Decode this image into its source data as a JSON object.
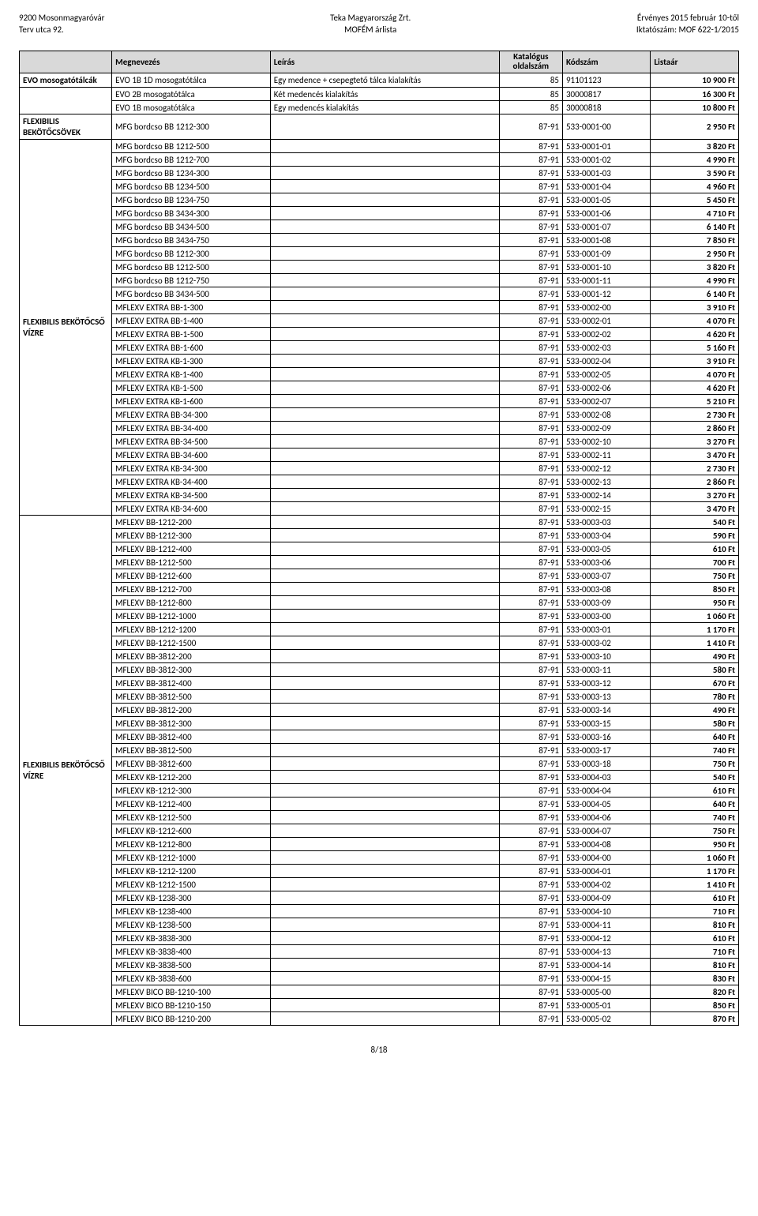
{
  "header": {
    "left1": "9200 Mosonmagyaróvár",
    "left2": "Terv utca 92.",
    "center1": "Teka Magyarország Zrt.",
    "center2": "MOFÉM árlista",
    "right1": "Érvényes 2015 február 10-től",
    "right2": "Iktatószám: MOF 622-1/2015"
  },
  "columns": {
    "cat": "",
    "name": "Megnevezés",
    "desc": "Leírás",
    "page1": "Katalógus",
    "page2": "oldalszám",
    "code": "Kódszám",
    "price": "Listaár"
  },
  "categories": [
    {
      "label": "EVO mosogatótálcák",
      "rowspan": 1
    },
    {
      "label": "",
      "rowspan": 2
    },
    {
      "label": "FLEXIBILIS BEKÖTŐCSÖVEK",
      "rowspan": 1
    },
    {
      "label": "FLEXIBILIS BEKÖTŐCSŐ VÍZRE",
      "rowspan": 28,
      "startAt": 14
    },
    {
      "label": "FLEXIBILIS BEKÖTŐCSŐ VÍZRE",
      "rowspan": 42,
      "startAt": 38
    }
  ],
  "rows": [
    [
      "cat0",
      "EVO 1B 1D mosogatótálca",
      "Egy medence + csepegtető tálca kialakítás",
      "85",
      "91101123",
      "10 900 Ft"
    ],
    [
      "",
      "EVO 2B mosogatótálca",
      "Két medencés kialakítás",
      "85",
      "30000817",
      "16 300 Ft"
    ],
    [
      "",
      "EVO 1B  mosogatótálca",
      "Egy medencés kialakítás",
      "85",
      "30000818",
      "10 800 Ft"
    ],
    [
      "cat2",
      "MFG  bordcso BB 1212-300",
      "",
      "87-91",
      "533-0001-00",
      "2 950 Ft"
    ],
    [
      "",
      "MFG  bordcso BB 1212-500",
      "",
      "87-91",
      "533-0001-01",
      "3 820 Ft"
    ],
    [
      "",
      "MFG  bordcso BB 1212-700",
      "",
      "87-91",
      "533-0001-02",
      "4 990 Ft"
    ],
    [
      "",
      "MFG  bordcso BB 1234-300",
      "",
      "87-91",
      "533-0001-03",
      "3 590 Ft"
    ],
    [
      "",
      "MFG  bordcso BB 1234-500",
      "",
      "87-91",
      "533-0001-04",
      "4 960 Ft"
    ],
    [
      "",
      "MFG  bordcso BB 1234-750",
      "",
      "87-91",
      "533-0001-05",
      "5 450 Ft"
    ],
    [
      "",
      "MFG  bordcso BB 3434-300",
      "",
      "87-91",
      "533-0001-06",
      "4 710 Ft"
    ],
    [
      "",
      "MFG  bordcso BB 3434-500",
      "",
      "87-91",
      "533-0001-07",
      "6 140 Ft"
    ],
    [
      "",
      "MFG  bordcso BB 3434-750",
      "",
      "87-91",
      "533-0001-08",
      "7 850 Ft"
    ],
    [
      "",
      "MFG  bordcso BB 1212-300",
      "",
      "87-91",
      "533-0001-09",
      "2 950 Ft"
    ],
    [
      "",
      "MFG  bordcso BB 1212-500",
      "",
      "87-91",
      "533-0001-10",
      "3 820 Ft"
    ],
    [
      "",
      "MFG  bordcso BB 1212-750",
      "",
      "87-91",
      "533-0001-11",
      "4 990 Ft"
    ],
    [
      "",
      "MFG  bordcso BB 3434-500",
      "",
      "87-91",
      "533-0001-12",
      "6 140 Ft"
    ],
    [
      "",
      "MFLEXV EXTRA BB-1-300",
      "",
      "87-91",
      "533-0002-00",
      "3 910 Ft"
    ],
    [
      "cat3",
      "MFLEXV EXTRA BB-1-400",
      "",
      "87-91",
      "533-0002-01",
      "4 070 Ft"
    ],
    [
      "",
      "MFLEXV EXTRA BB-1-500",
      "",
      "87-91",
      "533-0002-02",
      "4 620 Ft"
    ],
    [
      "",
      "MFLEXV EXTRA BB-1-600",
      "",
      "87-91",
      "533-0002-03",
      "5 160 Ft"
    ],
    [
      "",
      "MFLEXV EXTRA KB-1-300",
      "",
      "87-91",
      "533-0002-04",
      "3 910 Ft"
    ],
    [
      "",
      "MFLEXV EXTRA KB-1-400",
      "",
      "87-91",
      "533-0002-05",
      "4 070 Ft"
    ],
    [
      "",
      "MFLEXV EXTRA KB-1-500",
      "",
      "87-91",
      "533-0002-06",
      "4 620 Ft"
    ],
    [
      "",
      "MFLEXV EXTRA KB-1-600",
      "",
      "87-91",
      "533-0002-07",
      "5 210 Ft"
    ],
    [
      "",
      "MFLEXV EXTRA BB-34-300",
      "",
      "87-91",
      "533-0002-08",
      "2 730 Ft"
    ],
    [
      "",
      "MFLEXV EXTRA BB-34-400",
      "",
      "87-91",
      "533-0002-09",
      "2 860 Ft"
    ],
    [
      "",
      "MFLEXV EXTRA BB-34-500",
      "",
      "87-91",
      "533-0002-10",
      "3 270 Ft"
    ],
    [
      "",
      "MFLEXV EXTRA BB-34-600",
      "",
      "87-91",
      "533-0002-11",
      "3 470 Ft"
    ],
    [
      "",
      "MFLEXV EXTRA KB-34-300",
      "",
      "87-91",
      "533-0002-12",
      "2 730 Ft"
    ],
    [
      "",
      "MFLEXV EXTRA KB-34-400",
      "",
      "87-91",
      "533-0002-13",
      "2 860 Ft"
    ],
    [
      "",
      "MFLEXV EXTRA KB-34-500",
      "",
      "87-91",
      "533-0002-14",
      "3 270 Ft"
    ],
    [
      "",
      "MFLEXV EXTRA KB-34-600",
      "",
      "87-91",
      "533-0002-15",
      "3 470 Ft"
    ],
    [
      "",
      "MFLEXV BB-1212-200",
      "",
      "87-91",
      "533-0003-03",
      "540 Ft"
    ],
    [
      "cat4",
      "MFLEXV BB-1212-300",
      "",
      "87-91",
      "533-0003-04",
      "590 Ft"
    ],
    [
      "",
      "MFLEXV BB-1212-400",
      "",
      "87-91",
      "533-0003-05",
      "610 Ft"
    ],
    [
      "",
      "MFLEXV BB-1212-500",
      "",
      "87-91",
      "533-0003-06",
      "700 Ft"
    ],
    [
      "",
      "MFLEXV BB-1212-600",
      "",
      "87-91",
      "533-0003-07",
      "750 Ft"
    ],
    [
      "",
      "MFLEXV BB-1212-700",
      "",
      "87-91",
      "533-0003-08",
      "850 Ft"
    ],
    [
      "",
      "MFLEXV BB-1212-800",
      "",
      "87-91",
      "533-0003-09",
      "950 Ft"
    ],
    [
      "",
      "MFLEXV BB-1212-1000",
      "",
      "87-91",
      "533-0003-00",
      "1 060 Ft"
    ],
    [
      "",
      "MFLEXV BB-1212-1200",
      "",
      "87-91",
      "533-0003-01",
      "1 170 Ft"
    ],
    [
      "",
      "MFLEXV BB-1212-1500",
      "",
      "87-91",
      "533-0003-02",
      "1 410 Ft"
    ],
    [
      "",
      "MFLEXV BB-3812-200",
      "",
      "87-91",
      "533-0003-10",
      "490 Ft"
    ],
    [
      "",
      "MFLEXV BB-3812-300",
      "",
      "87-91",
      "533-0003-11",
      "580 Ft"
    ],
    [
      "",
      "MFLEXV BB-3812-400",
      "",
      "87-91",
      "533-0003-12",
      "670 Ft"
    ],
    [
      "",
      "MFLEXV BB-3812-500",
      "",
      "87-91",
      "533-0003-13",
      "780 Ft"
    ],
    [
      "",
      "MFLEXV BB-3812-200",
      "",
      "87-91",
      "533-0003-14",
      "490 Ft"
    ],
    [
      "",
      "MFLEXV BB-3812-300",
      "",
      "87-91",
      "533-0003-15",
      "580 Ft"
    ],
    [
      "",
      "MFLEXV BB-3812-400",
      "",
      "87-91",
      "533-0003-16",
      "640 Ft"
    ],
    [
      "",
      "MFLEXV BB-3812-500",
      "",
      "87-91",
      "533-0003-17",
      "740 Ft"
    ],
    [
      "",
      "MFLEXV BB-3812-600",
      "",
      "87-91",
      "533-0003-18",
      "750 Ft"
    ],
    [
      "",
      "MFLEXV KB-1212-200",
      "",
      "87-91",
      "533-0004-03",
      "540 Ft"
    ],
    [
      "",
      "MFLEXV KB-1212-300",
      "",
      "87-91",
      "533-0004-04",
      "610 Ft"
    ],
    [
      "",
      "MFLEXV KB-1212-400",
      "",
      "87-91",
      "533-0004-05",
      "640 Ft"
    ],
    [
      "",
      "MFLEXV KB-1212-500",
      "",
      "87-91",
      "533-0004-06",
      "740 Ft"
    ],
    [
      "",
      "MFLEXV KB-1212-600",
      "",
      "87-91",
      "533-0004-07",
      "750 Ft"
    ],
    [
      "",
      "MFLEXV KB-1212-800",
      "",
      "87-91",
      "533-0004-08",
      "950 Ft"
    ],
    [
      "",
      "MFLEXV KB-1212-1000",
      "",
      "87-91",
      "533-0004-00",
      "1 060 Ft"
    ],
    [
      "",
      "MFLEXV KB-1212-1200",
      "",
      "87-91",
      "533-0004-01",
      "1 170 Ft"
    ],
    [
      "",
      "MFLEXV KB-1212-1500",
      "",
      "87-91",
      "533-0004-02",
      "1 410 Ft"
    ],
    [
      "",
      "MFLEXV KB-1238-300",
      "",
      "87-91",
      "533-0004-09",
      "610 Ft"
    ],
    [
      "",
      "MFLEXV KB-1238-400",
      "",
      "87-91",
      "533-0004-10",
      "710 Ft"
    ],
    [
      "",
      "MFLEXV KB-1238-500",
      "",
      "87-91",
      "533-0004-11",
      "810 Ft"
    ],
    [
      "",
      "MFLEXV KB-3838-300",
      "",
      "87-91",
      "533-0004-12",
      "610 Ft"
    ],
    [
      "",
      "MFLEXV KB-3838-400",
      "",
      "87-91",
      "533-0004-13",
      "710 Ft"
    ],
    [
      "",
      "MFLEXV KB-3838-500",
      "",
      "87-91",
      "533-0004-14",
      "810 Ft"
    ],
    [
      "",
      "MFLEXV KB-3838-600",
      "",
      "87-91",
      "533-0004-15",
      "830 Ft"
    ],
    [
      "",
      "MFLEXV BICO BB-1210-100",
      "",
      "87-91",
      "533-0005-00",
      "820 Ft"
    ],
    [
      "",
      "MFLEXV BICO BB-1210-150",
      "",
      "87-91",
      "533-0005-01",
      "850 Ft"
    ],
    [
      "",
      "MFLEXV BICO BB-1210-200",
      "",
      "87-91",
      "533-0005-02",
      "870 Ft"
    ]
  ],
  "footer": "8/18"
}
